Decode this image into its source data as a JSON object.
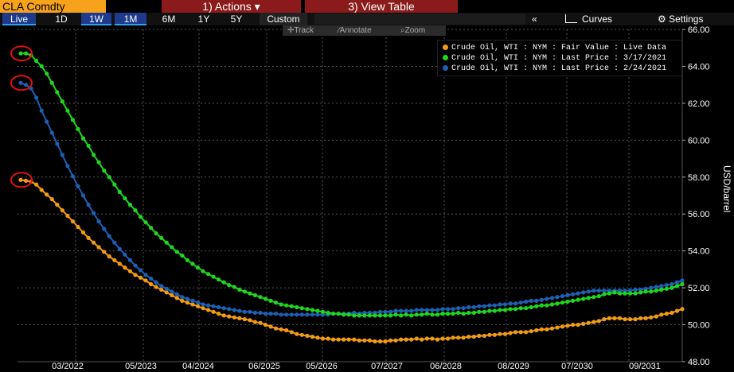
{
  "header": {
    "ticker": "CLA Comdty",
    "actions_label": "1) Actions ▾",
    "view_table_label": "3) View Table"
  },
  "range_buttons": [
    {
      "label": "Live"
    },
    {
      "label": "1D"
    },
    {
      "label": "1W"
    },
    {
      "label": "1M"
    },
    {
      "label": "6M"
    },
    {
      "label": "1Y"
    },
    {
      "label": "5Y"
    },
    {
      "label": "Custom"
    }
  ],
  "controls": {
    "collapse": "«",
    "curves": "Curves",
    "settings": "Settings"
  },
  "toolbar": {
    "track": "Track",
    "annotate": "Annotate",
    "zoom": "Zoom"
  },
  "chart_data": {
    "type": "line",
    "x_tick_labels": [
      "03/2022",
      "05/2023",
      "04/2024",
      "06/2025",
      "05/2026",
      "07/2027",
      "06/2028",
      "08/2029",
      "07/2030",
      "09/2031"
    ],
    "ylabel": "USD/barrel",
    "ylim": [
      48,
      66
    ],
    "y_ticks": [
      48,
      50,
      52,
      54,
      56,
      58,
      60,
      62,
      64,
      66
    ],
    "grid": true,
    "legend_position": "top-right",
    "n_points": 128,
    "series": [
      {
        "name": "Crude Oil, WTI : NYM : Fair Value : Live Data",
        "color": "#f39c12",
        "values": [
          57.85,
          57.8,
          57.75,
          57.6,
          57.3,
          57.05,
          56.8,
          56.5,
          56.2,
          55.9,
          55.6,
          55.3,
          55.0,
          54.7,
          54.45,
          54.2,
          53.95,
          53.7,
          53.5,
          53.3,
          53.1,
          52.9,
          52.7,
          52.55,
          52.4,
          52.2,
          52.05,
          51.9,
          51.75,
          51.6,
          51.45,
          51.3,
          51.2,
          51.1,
          51.0,
          50.9,
          50.8,
          50.7,
          50.6,
          50.5,
          50.45,
          50.4,
          50.35,
          50.3,
          50.25,
          50.15,
          50.1,
          50.0,
          49.9,
          49.8,
          49.75,
          49.7,
          49.6,
          49.5,
          49.45,
          49.4,
          49.35,
          49.3,
          49.25,
          49.25,
          49.2,
          49.2,
          49.2,
          49.2,
          49.2,
          49.15,
          49.15,
          49.15,
          49.1,
          49.1,
          49.1,
          49.15,
          49.15,
          49.2,
          49.2,
          49.2,
          49.25,
          49.2,
          49.25,
          49.25,
          49.2,
          49.25,
          49.25,
          49.3,
          49.3,
          49.3,
          49.35,
          49.35,
          49.4,
          49.4,
          49.45,
          49.45,
          49.5,
          49.5,
          49.55,
          49.6,
          49.6,
          49.6,
          49.65,
          49.7,
          49.75,
          49.75,
          49.8,
          49.85,
          49.9,
          49.95,
          50.0,
          50.0,
          50.05,
          50.1,
          50.15,
          50.2,
          50.3,
          50.35,
          50.35,
          50.35,
          50.3,
          50.3,
          50.3,
          50.35,
          50.35,
          50.4,
          50.45,
          50.55,
          50.6,
          50.65,
          50.75,
          50.85
        ]
      },
      {
        "name": "Crude Oil, WTI : NYM : Last Price : 3/17/2021",
        "color": "#1ed81e",
        "values": [
          64.7,
          64.7,
          64.6,
          64.3,
          64.0,
          63.6,
          63.1,
          62.6,
          62.1,
          61.6,
          61.1,
          60.6,
          60.1,
          59.7,
          59.2,
          58.8,
          58.35,
          58.0,
          57.6,
          57.2,
          56.85,
          56.5,
          56.2,
          55.85,
          55.55,
          55.25,
          54.95,
          54.7,
          54.45,
          54.2,
          53.95,
          53.75,
          53.5,
          53.3,
          53.1,
          52.9,
          52.75,
          52.6,
          52.45,
          52.3,
          52.15,
          52.05,
          51.9,
          51.8,
          51.7,
          51.6,
          51.5,
          51.4,
          51.3,
          51.2,
          51.1,
          51.05,
          51.0,
          50.95,
          50.9,
          50.85,
          50.8,
          50.75,
          50.7,
          50.65,
          50.6,
          50.6,
          50.55,
          50.55,
          50.5,
          50.5,
          50.5,
          50.5,
          50.5,
          50.5,
          50.5,
          50.5,
          50.55,
          50.5,
          50.55,
          50.5,
          50.55,
          50.55,
          50.6,
          50.55,
          50.55,
          50.6,
          50.6,
          50.6,
          50.65,
          50.6,
          50.65,
          50.65,
          50.7,
          50.7,
          50.75,
          50.75,
          50.8,
          50.8,
          50.85,
          50.85,
          50.9,
          50.9,
          50.95,
          51.0,
          51.05,
          51.05,
          51.1,
          51.15,
          51.2,
          51.25,
          51.3,
          51.35,
          51.4,
          51.45,
          51.5,
          51.55,
          51.65,
          51.7,
          51.75,
          51.7,
          51.7,
          51.7,
          51.7,
          51.75,
          51.8,
          51.8,
          51.85,
          51.9,
          51.95,
          52.0,
          52.1,
          52.2
        ]
      },
      {
        "name": "Crude Oil, WTI : NYM : Last Price : 2/24/2021",
        "color": "#1f5fb4",
        "values": [
          63.1,
          63.0,
          62.8,
          62.3,
          61.6,
          61.0,
          60.4,
          59.8,
          59.2,
          58.6,
          58.05,
          57.5,
          57.0,
          56.5,
          56.05,
          55.6,
          55.2,
          54.8,
          54.45,
          54.1,
          53.8,
          53.5,
          53.2,
          52.95,
          52.7,
          52.5,
          52.3,
          52.1,
          51.95,
          51.8,
          51.65,
          51.5,
          51.4,
          51.3,
          51.2,
          51.1,
          51.05,
          51.0,
          50.95,
          50.9,
          50.85,
          50.8,
          50.75,
          50.7,
          50.7,
          50.65,
          50.65,
          50.6,
          50.6,
          50.6,
          50.55,
          50.55,
          50.55,
          50.55,
          50.55,
          50.55,
          50.55,
          50.55,
          50.55,
          50.55,
          50.6,
          50.6,
          50.6,
          50.6,
          50.65,
          50.6,
          50.65,
          50.65,
          50.65,
          50.7,
          50.7,
          50.7,
          50.75,
          50.75,
          50.75,
          50.75,
          50.8,
          50.8,
          50.8,
          50.8,
          50.8,
          50.85,
          50.85,
          50.85,
          50.9,
          50.9,
          50.95,
          50.95,
          51.0,
          51.0,
          51.05,
          51.05,
          51.1,
          51.1,
          51.15,
          51.15,
          51.2,
          51.25,
          51.3,
          51.3,
          51.35,
          51.4,
          51.45,
          51.5,
          51.55,
          51.6,
          51.65,
          51.7,
          51.75,
          51.8,
          51.85,
          51.85,
          51.85,
          51.85,
          51.85,
          51.85,
          51.85,
          51.85,
          51.9,
          51.9,
          51.95,
          52.0,
          52.05,
          52.1,
          52.15,
          52.2,
          52.3,
          52.4
        ]
      }
    ]
  },
  "annotations": [
    {
      "name": "circle-fair-value-start",
      "color": "#e01010"
    },
    {
      "name": "circle-3-17-start",
      "color": "#e01010"
    },
    {
      "name": "circle-2-24-start",
      "color": "#e01010"
    }
  ]
}
